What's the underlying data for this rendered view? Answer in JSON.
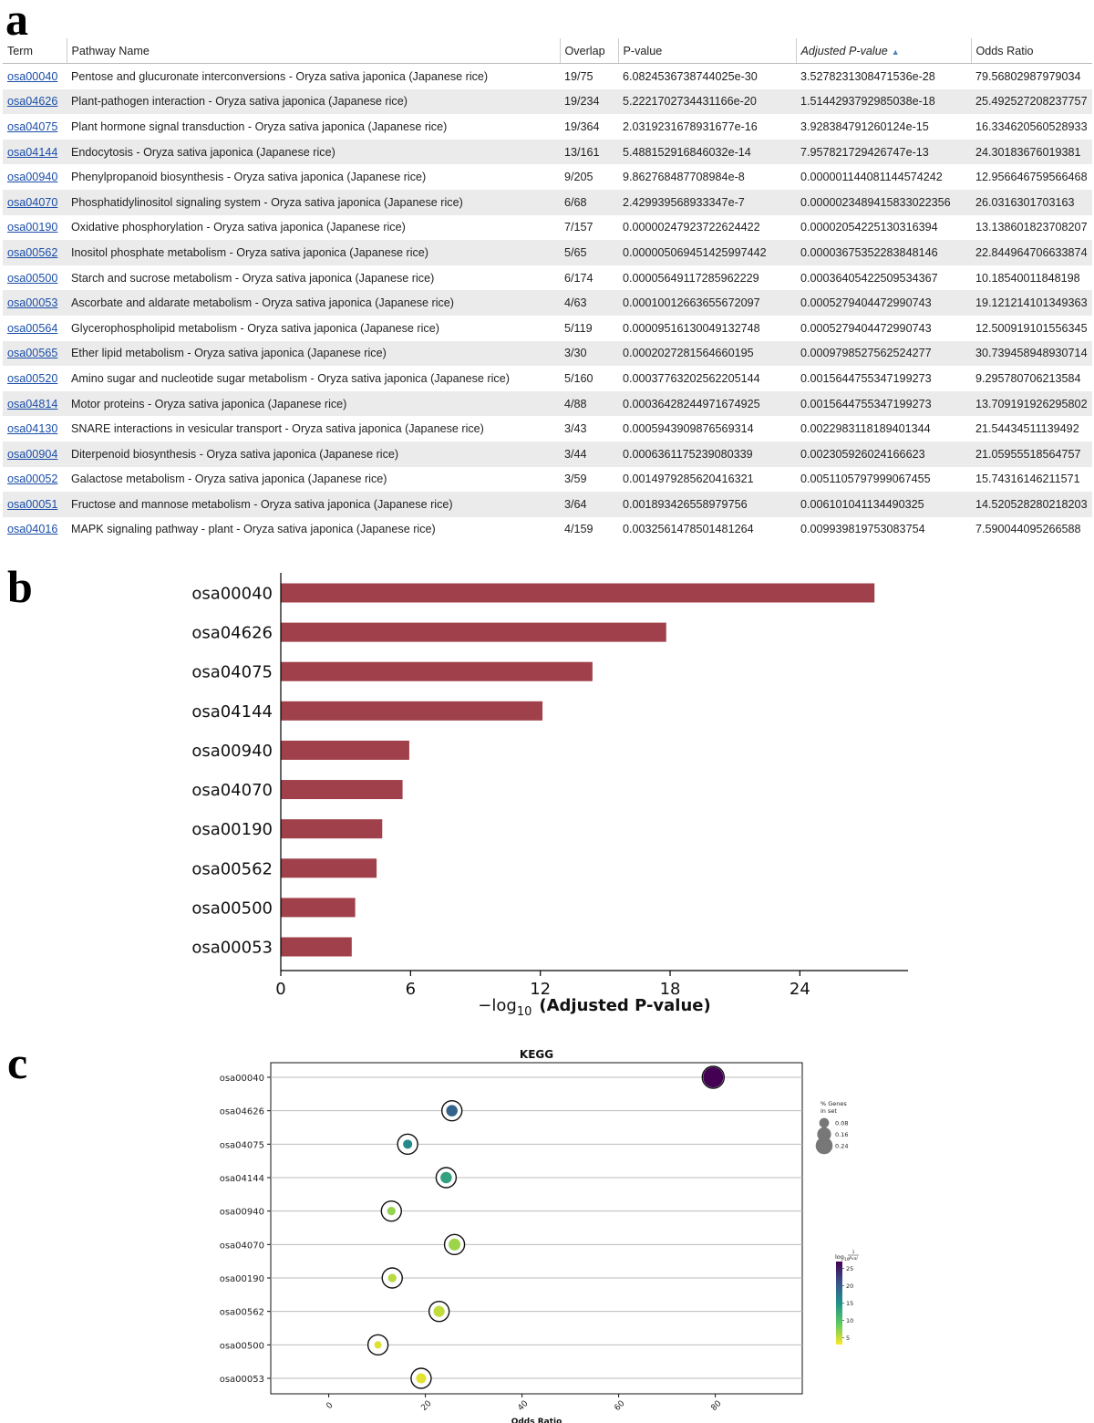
{
  "panels": {
    "a": "a",
    "b": "b",
    "c": "c"
  },
  "table": {
    "columns": [
      "Term",
      "Pathway Name",
      "Overlap",
      "P-value",
      "Adjusted P-value",
      "Odds Ratio"
    ],
    "sorted_column": "Adjusted P-value",
    "rows": [
      [
        "osa00040",
        "Pentose and glucuronate interconversions - Oryza sativa japonica (Japanese rice)",
        "19/75",
        "6.0824536738744025e-30",
        "3.5278231308471536e-28",
        "79.56802987979034"
      ],
      [
        "osa04626",
        "Plant-pathogen interaction - Oryza sativa japonica (Japanese rice)",
        "19/234",
        "5.2221702734431166e-20",
        "1.5144293792985038e-18",
        "25.492527208237757"
      ],
      [
        "osa04075",
        "Plant hormone signal transduction - Oryza sativa japonica (Japanese rice)",
        "19/364",
        "2.0319231678931677e-16",
        "3.928384791260124e-15",
        "16.334620560528933"
      ],
      [
        "osa04144",
        "Endocytosis - Oryza sativa japonica (Japanese rice)",
        "13/161",
        "5.488152916846032e-14",
        "7.957821729426747e-13",
        "24.30183676019381"
      ],
      [
        "osa00940",
        "Phenylpropanoid biosynthesis - Oryza sativa japonica (Japanese rice)",
        "9/205",
        "9.862768487708984e-8",
        "0.000001144081144574242",
        "12.956646759566468"
      ],
      [
        "osa04070",
        "Phosphatidylinositol signaling system - Oryza sativa japonica (Japanese rice)",
        "6/68",
        "2.429939568933347e-7",
        "0.0000023489415833022356",
        "26.0316301703163"
      ],
      [
        "osa00190",
        "Oxidative phosphorylation - Oryza sativa japonica (Japanese rice)",
        "7/157",
        "0.00000247923722624422",
        "0.00002054225130316394",
        "13.138601823708207"
      ],
      [
        "osa00562",
        "Inositol phosphate metabolism - Oryza sativa japonica (Japanese rice)",
        "5/65",
        "0.000005069451425997442",
        "0.000036753522838481​46",
        "22.844964706633874"
      ],
      [
        "osa00500",
        "Starch and sucrose metabolism - Oryza sativa japonica (Japanese rice)",
        "6/174",
        "0.00005649117285962229",
        "0.0003640542250953436​7",
        "10.18540011848198"
      ],
      [
        "osa00053",
        "Ascorbate and aldarate metabolism - Oryza sativa japonica (Japanese rice)",
        "4/63",
        "0.00010012663655672097",
        "0.0005279404472990743",
        "19.121214101349363"
      ],
      [
        "osa00564",
        "Glycerophospholipid metabolism - Oryza sativa japonica (Japanese rice)",
        "5/119",
        "0.00009516130049132748",
        "0.0005279404472990743",
        "12.500919101556345"
      ],
      [
        "osa00565",
        "Ether lipid metabolism - Oryza sativa japonica (Japanese rice)",
        "3/30",
        "0.0002027281564660195",
        "0.0009798527562524277",
        "30.739458948930714"
      ],
      [
        "osa00520",
        "Amino sugar and nucleotide sugar metabolism - Oryza sativa japonica (Japanese rice)",
        "5/160",
        "0.0003776320256220514​4",
        "0.0015644755347199273",
        "9.295780706213584"
      ],
      [
        "osa04814",
        "Motor proteins - Oryza sativa japonica (Japanese rice)",
        "4/88",
        "0.00036428244971674925",
        "0.0015644755347199273",
        "13.709191926295802"
      ],
      [
        "osa04130",
        "SNARE interactions in vesicular transport - Oryza sativa japonica (Japanese rice)",
        "3/43",
        "0.0005943909876569314",
        "0.0022983118189401344",
        "21.54434511139492"
      ],
      [
        "osa00904",
        "Diterpenoid biosynthesis - Oryza sativa japonica (Japanese rice)",
        "3/44",
        "0.0006361175239080339",
        "0.002305926024166623",
        "21.05955518564757"
      ],
      [
        "osa00052",
        "Galactose metabolism - Oryza sativa japonica (Japanese rice)",
        "3/59",
        "0.0014979285620416321",
        "0.0051105797999067455",
        "15.74316146211571"
      ],
      [
        "osa00051",
        "Fructose and mannose metabolism - Oryza sativa japonica (Japanese rice)",
        "3/64",
        "0.001893426558979756",
        "0.006101041134490325",
        "14.520528280218203"
      ],
      [
        "osa04016",
        "MAPK signaling pathway - plant - Oryza sativa japonica (Japanese rice)",
        "4/159",
        "0.0032561478501481264",
        "0.009939819753083754",
        "7.590044095266588"
      ]
    ]
  },
  "chart_data": [
    {
      "type": "bar",
      "orientation": "horizontal",
      "categories": [
        "osa00040",
        "osa04626",
        "osa04075",
        "osa04144",
        "osa00940",
        "osa04070",
        "osa00190",
        "osa00562",
        "osa00500",
        "osa00053"
      ],
      "values": [
        27.45,
        17.82,
        14.41,
        12.1,
        5.94,
        5.63,
        4.69,
        4.43,
        3.44,
        3.28
      ],
      "xlabel_prefix": "−log",
      "xlabel_sub": "10",
      "xlabel_main": "(Adjusted P-value)",
      "xticks": [
        0,
        6,
        12,
        18,
        24
      ],
      "xlim": [
        0,
        29
      ],
      "bar_color": "#a0404a"
    },
    {
      "type": "scatter",
      "title": "KEGG",
      "categories": [
        "osa00040",
        "osa04626",
        "osa04075",
        "osa04144",
        "osa00940",
        "osa04070",
        "osa00190",
        "osa00562",
        "osa00500",
        "osa00053"
      ],
      "x": [
        79.57,
        25.49,
        16.33,
        24.3,
        12.96,
        26.03,
        13.14,
        22.84,
        10.19,
        19.12
      ],
      "neglog10_p": [
        29.22,
        19.28,
        15.69,
        13.26,
        7.01,
        6.61,
        5.61,
        5.3,
        4.25,
        4.0
      ],
      "gene_fraction": [
        0.253,
        0.081,
        0.052,
        0.081,
        0.044,
        0.088,
        0.045,
        0.077,
        0.034,
        0.063
      ],
      "xlabel": "Odds Ratio",
      "xticks": [
        0,
        20,
        40,
        60,
        80
      ],
      "xlim": [
        -12,
        98
      ],
      "size_legend_title": [
        "% Genes",
        "in set"
      ],
      "size_legend": [
        0.08,
        0.16,
        0.24
      ],
      "color_legend_title": "log",
      "color_legend_sub": "10",
      "color_legend_frac": [
        "1",
        "Pval"
      ],
      "color_ticks": [
        5,
        10,
        15,
        20,
        25
      ],
      "color_range": [
        3,
        27
      ]
    }
  ]
}
